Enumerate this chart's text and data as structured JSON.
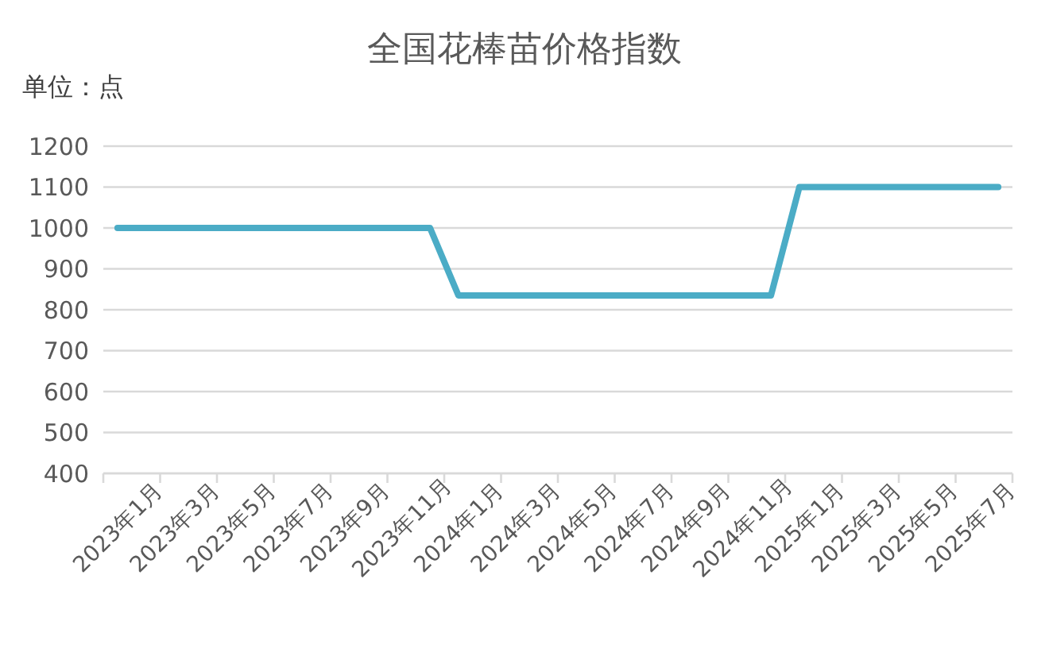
{
  "chart_data": {
    "type": "line",
    "title": "全国花棒苗价格指数",
    "annotations": [
      "单位：点"
    ],
    "categories": [
      "2023年1月",
      null,
      "2023年3月",
      null,
      "2023年5月",
      null,
      "2023年7月",
      null,
      "2023年9月",
      null,
      "2023年11月",
      null,
      "2024年1月",
      null,
      "2024年3月",
      null,
      "2024年5月",
      null,
      "2024年7月",
      null,
      "2024年9月",
      null,
      "2024年11月",
      null,
      "2025年1月",
      null,
      "2025年3月",
      null,
      "2025年5月",
      null,
      "2025年7月",
      null
    ],
    "series": [
      {
        "color": "#4bacc6",
        "values": [
          1000,
          1000,
          1000,
          1000,
          1000,
          1000,
          1000,
          1000,
          1000,
          1000,
          1000,
          1000,
          835,
          835,
          835,
          835,
          835,
          835,
          835,
          835,
          835,
          835,
          835,
          835,
          1100,
          1100,
          1100,
          1100,
          1100,
          1100,
          1100,
          1100
        ]
      }
    ],
    "ylim": [
      400,
      1200
    ],
    "yticks": [
      400,
      500,
      600,
      700,
      800,
      900,
      1000,
      1100,
      1200
    ],
    "grid": "y",
    "marker": "none",
    "line_style": "solid"
  }
}
